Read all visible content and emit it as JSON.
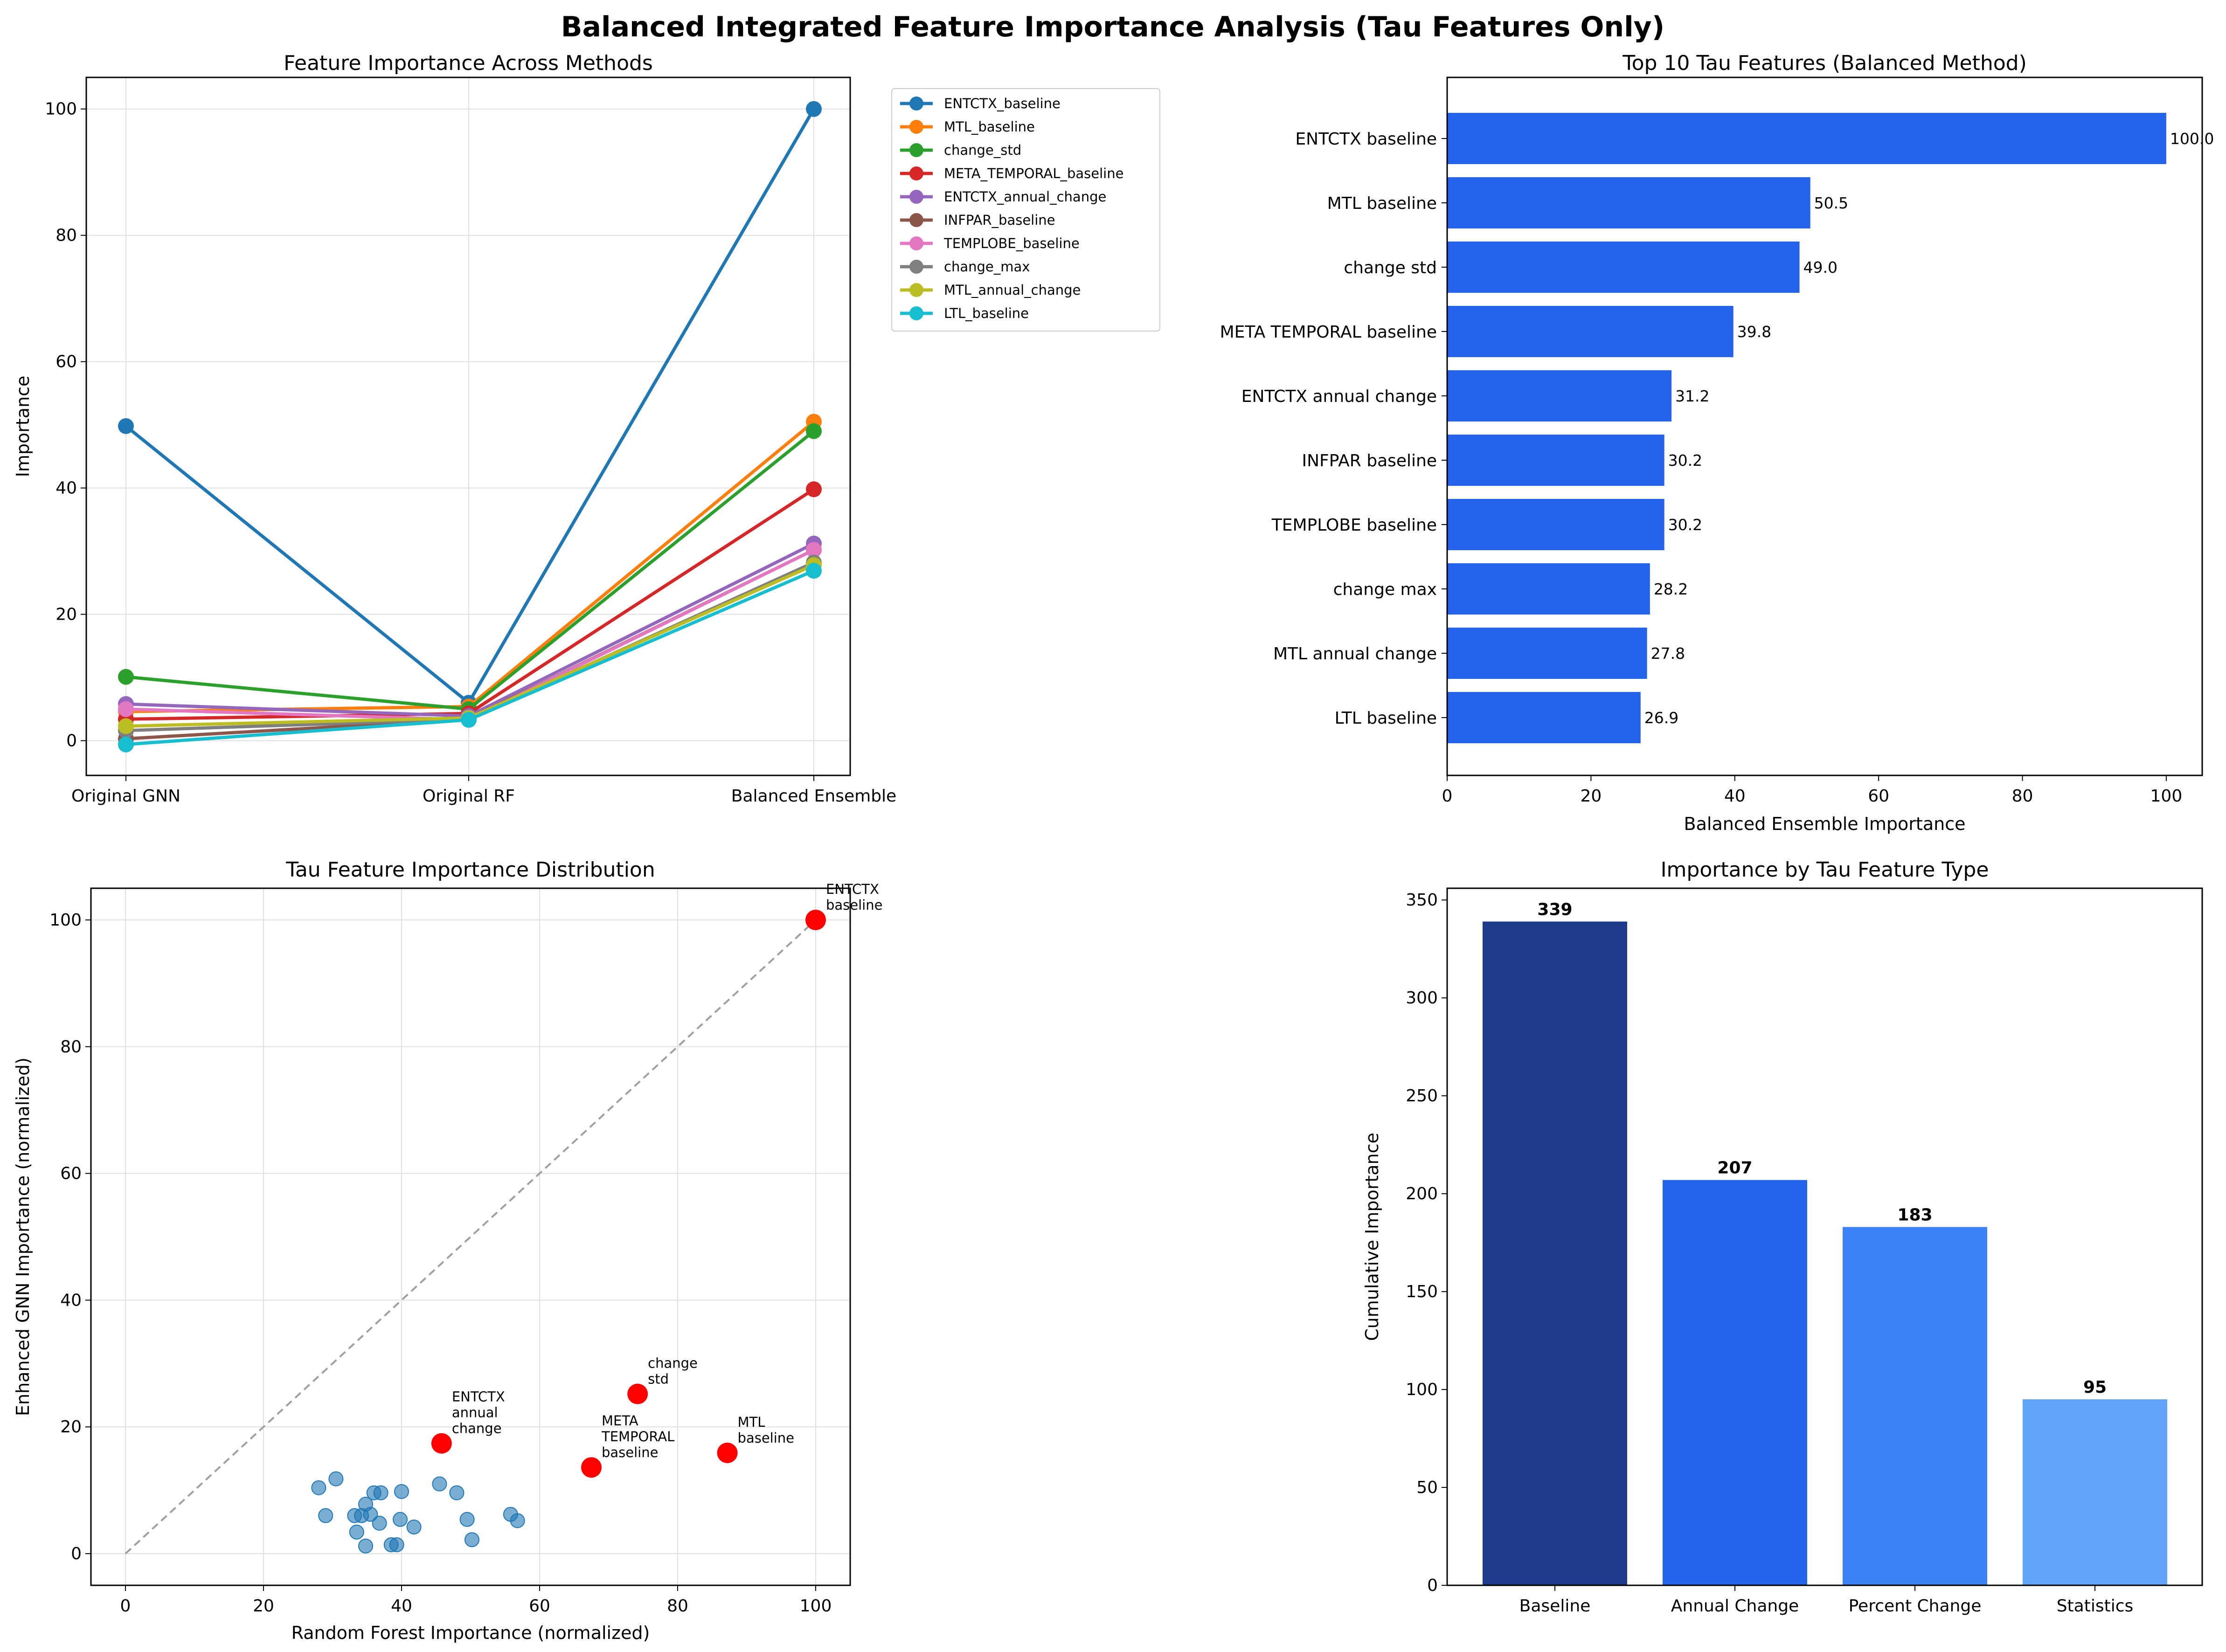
{
  "figure": {
    "suptitle": "Balanced Integrated Feature Importance Analysis (Tau Features Only)"
  },
  "chart_data": [
    {
      "id": "methods",
      "type": "line",
      "title": "Feature Importance Across Methods",
      "xlabel": "",
      "ylabel": "Importance",
      "categories": [
        "Original GNN",
        "Original RF",
        "Balanced Ensemble"
      ],
      "ylim": [
        -5.5,
        105
      ],
      "yticks": [
        0,
        20,
        40,
        60,
        80,
        100
      ],
      "grid": true,
      "legend": "outside top-right",
      "series": [
        {
          "name": "ENTCTX_baseline",
          "color": "#1f77b4",
          "values": [
            49.8,
            6.0,
            100.0
          ]
        },
        {
          "name": "MTL_baseline",
          "color": "#ff7f0e",
          "values": [
            4.6,
            5.4,
            50.5
          ]
        },
        {
          "name": "change_std",
          "color": "#2ca02c",
          "values": [
            10.1,
            5.0,
            49.0
          ]
        },
        {
          "name": "META_TEMPORAL_baseline",
          "color": "#d62728",
          "values": [
            3.4,
            4.3,
            39.8
          ]
        },
        {
          "name": "ENTCTX_annual_change",
          "color": "#9467bd",
          "values": [
            5.8,
            3.9,
            31.2
          ]
        },
        {
          "name": "INFPAR_baseline",
          "color": "#8c564b",
          "values": [
            0.3,
            3.4,
            30.2
          ]
        },
        {
          "name": "TEMPLOBE_baseline",
          "color": "#e377c2",
          "values": [
            5.0,
            3.3,
            30.2
          ]
        },
        {
          "name": "change_max",
          "color": "#7f7f7f",
          "values": [
            1.6,
            3.4,
            28.2
          ]
        },
        {
          "name": "MTL_annual_change",
          "color": "#bcbd22",
          "values": [
            2.3,
            3.6,
            27.8
          ]
        },
        {
          "name": "LTL_baseline",
          "color": "#17becf",
          "values": [
            -0.6,
            3.3,
            26.9
          ]
        }
      ]
    },
    {
      "id": "top10",
      "type": "bar",
      "orientation": "horizontal",
      "title": "Top 10 Tau Features (Balanced Method)",
      "xlabel": "Balanced Ensemble Importance",
      "ylabel": "",
      "color": "#2563eb",
      "categories": [
        "ENTCTX baseline",
        "MTL baseline",
        "change std",
        "META TEMPORAL baseline",
        "ENTCTX annual change",
        "INFPAR baseline",
        "TEMPLOBE baseline",
        "change max",
        "MTL annual change",
        "LTL baseline"
      ],
      "values": [
        100.0,
        50.5,
        49.0,
        39.8,
        31.2,
        30.2,
        30.2,
        28.2,
        27.8,
        26.9
      ],
      "value_labels": [
        "100.0",
        "50.5",
        "49.0",
        "39.8",
        "31.2",
        "30.2",
        "30.2",
        "28.2",
        "27.8",
        "26.9"
      ],
      "xlim": [
        0,
        105
      ],
      "xticks": [
        0,
        20,
        40,
        60,
        80,
        100
      ]
    },
    {
      "id": "scatter",
      "type": "scatter",
      "title": "Tau Feature Importance Distribution",
      "xlabel": "Random Forest Importance (normalized)",
      "ylabel": "Enhanced GNN Importance (normalized)",
      "xlim": [
        -5,
        105
      ],
      "ylim": [
        -5,
        105
      ],
      "xticks": [
        0,
        20,
        40,
        60,
        80,
        100
      ],
      "yticks": [
        0,
        20,
        40,
        60,
        80,
        100
      ],
      "grid": true,
      "diagonal": true,
      "point_color": "#1f77b4",
      "highlight_color": "#ff0000",
      "points": [
        [
          28.0,
          10.4
        ],
        [
          29.0,
          6.0
        ],
        [
          30.5,
          11.8
        ],
        [
          33.2,
          6.0
        ],
        [
          33.5,
          3.4
        ],
        [
          34.2,
          6.0
        ],
        [
          34.8,
          7.8
        ],
        [
          34.8,
          1.2
        ],
        [
          35.5,
          6.2
        ],
        [
          36.0,
          9.6
        ],
        [
          36.8,
          4.8
        ],
        [
          37.0,
          9.6
        ],
        [
          38.5,
          1.4
        ],
        [
          39.3,
          1.4
        ],
        [
          39.8,
          5.4
        ],
        [
          40.0,
          9.8
        ],
        [
          41.8,
          4.2
        ],
        [
          45.5,
          11.0
        ],
        [
          48.0,
          9.6
        ],
        [
          49.5,
          5.4
        ],
        [
          50.2,
          2.2
        ],
        [
          55.8,
          6.2
        ],
        [
          56.8,
          5.2
        ]
      ],
      "highlights": [
        {
          "x": 100.0,
          "y": 100.0,
          "label": "ENTCTX\nbaseline"
        },
        {
          "x": 74.2,
          "y": 25.2,
          "label": "change\nstd"
        },
        {
          "x": 45.8,
          "y": 17.4,
          "label": "ENTCTX\nannual\nchange"
        },
        {
          "x": 67.5,
          "y": 13.6,
          "label": "META\nTEMPORAL\nbaseline"
        },
        {
          "x": 87.2,
          "y": 15.9,
          "label": "MTL\nbaseline"
        }
      ]
    },
    {
      "id": "types",
      "type": "bar",
      "title": "Importance by Tau Feature Type",
      "xlabel": "",
      "ylabel": "Cumulative Importance",
      "categories": [
        "Baseline",
        "Annual Change",
        "Percent Change",
        "Statistics"
      ],
      "values": [
        339,
        207,
        183,
        95
      ],
      "value_labels": [
        "339",
        "207",
        "183",
        "95"
      ],
      "colors": [
        "#1e3a8a",
        "#2563eb",
        "#3b82f6",
        "#60a5fa"
      ],
      "ylim": [
        0,
        356
      ],
      "yticks": [
        0,
        50,
        100,
        150,
        200,
        250,
        300,
        350
      ]
    }
  ]
}
